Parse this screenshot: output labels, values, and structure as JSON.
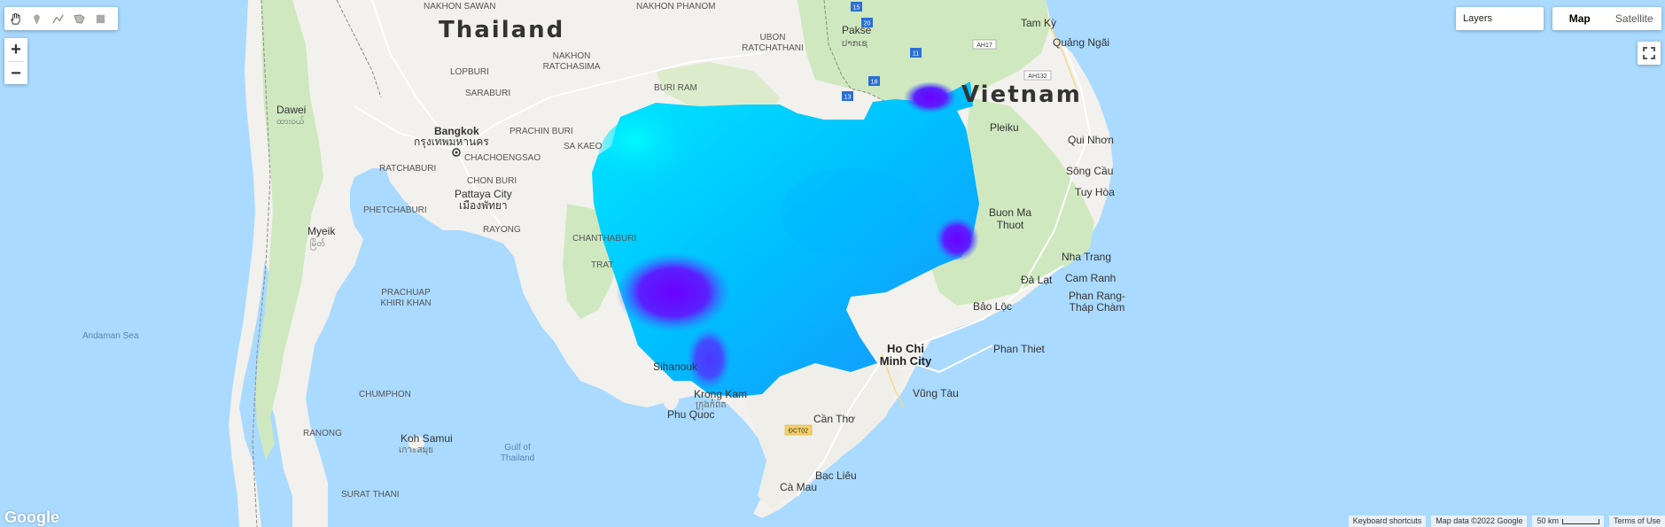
{
  "toolbar": {
    "tools": [
      {
        "name": "hand-tool-icon"
      },
      {
        "name": "marker-tool-icon"
      },
      {
        "name": "line-tool-icon"
      },
      {
        "name": "polygon-tool-icon"
      },
      {
        "name": "rectangle-tool-icon"
      }
    ]
  },
  "zoom": {
    "in_label": "+",
    "out_label": "−"
  },
  "layers": {
    "label": "Layers"
  },
  "map_type": {
    "map_label": "Map",
    "satellite_label": "Satellite",
    "active": "Map"
  },
  "logo": {
    "text": "Google"
  },
  "footer": {
    "shortcuts": "Keyboard shortcuts",
    "map_data": "Map data ©2022 Google",
    "scale": "50 km",
    "terms": "Terms of Use"
  },
  "labels": {
    "thailand": "Thailand",
    "vietnam": "Vietnam",
    "nakhon_sawan": "NAKHON SAWAN",
    "lop_buri": "LOPBURI",
    "saraburi": "SARABURI",
    "nakhon_ratchasima": "NAKHON\nRATCHASIMA",
    "buri_ram": "BURI RAM",
    "ubon": "UBON\nRATCHATHANI",
    "pakse": "Pakse",
    "pakse_th": "ປາກເຊ",
    "bangkok": "Bangkok",
    "bangkok_th": "กรุงเทพมหานคร",
    "prachin_buri": "PRACHIN BURI",
    "sa_kaeo": "SA KAEO",
    "chachoengsao": "CHACHOENGSAO",
    "ratchaburi": "RATCHABURI",
    "chon_buri": "CHON BURI",
    "pattaya": "Pattaya City",
    "pattaya_th": "เมืองพัทยา",
    "rayong": "RAYONG",
    "chanthaburi": "CHANTHABURI",
    "trat": "TRAT",
    "phetchaburi": "PHETCHABURI",
    "prachuap": "PRACHUAP\nKHIRI KHAN",
    "dawei": "Dawei",
    "dawei_my": "ထားဝယ်",
    "myeik": "Myeik",
    "myeik_my": "မြိတ်",
    "andaman": "Andaman Sea",
    "chumphon": "CHUMPHON",
    "ranong": "RANONG",
    "koh_samui": "Koh Samui",
    "koh_samui_th": "เกาะสมุย",
    "gulf": "Gulf of\nThailand",
    "surat_thani": "SURAT THANI",
    "phu_quoc": "Phu Quoc",
    "kampot": "Krong Kam",
    "kampot_km": "ក្រុងកំពត",
    "sihanouk": "Sihanouk",
    "can_tho": "Cần Thơ",
    "bac_lieu": "Bạc Liêu",
    "ca_mau": "Cà Mau",
    "hcm": "Ho Chi\nMinh City",
    "vung_tau": "Vũng Tàu",
    "phan_thiet": "Phan Thiet",
    "bao_loc": "Bảo Lộc",
    "da_lat": "Đà Lạt",
    "phan_rang": "Phan Rang-\nTháp Chàm",
    "cam_ranh": "Cam Ranh",
    "nha_trang": "Nha Trang",
    "buon_ma": "Buon Ma\nThuot",
    "tuy_hoa": "Tuy Hòa",
    "song_cau": "Sông Cầu",
    "qui_nhon": "Qui Nhơn",
    "pleiku": "Pleiku",
    "quang_ngai": "Quảng Ngãi",
    "tam_ky": "Tam Kỳ",
    "road_dct02": "ĐCT02",
    "road_ah17": "AH17",
    "road_ah132": "AH132",
    "road_13": "13",
    "road_18": "18",
    "road_11": "11",
    "road_20": "20",
    "road_15": "15",
    "nakhon_phanom": "NAKHON PHANOM"
  },
  "colors": {
    "water": "#aadaff",
    "land": "#f2f1ed",
    "green": "#cfe8bf",
    "overlay_cyan": "#00f0ff",
    "overlay_blue": "#0090ff",
    "overlay_violet": "#7a00ff"
  }
}
